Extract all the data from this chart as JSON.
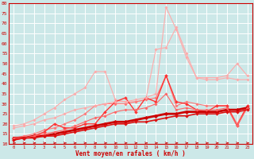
{
  "bg_color": "#cce8e8",
  "grid_color": "#b8d8d8",
  "xlabel": "Vent moyen/en rafales ( km/h )",
  "xlabel_color": "#cc0000",
  "tick_color": "#cc0000",
  "x_ticks": [
    0,
    1,
    2,
    3,
    4,
    5,
    6,
    7,
    8,
    9,
    10,
    11,
    12,
    13,
    14,
    15,
    16,
    17,
    18,
    19,
    20,
    21,
    22,
    23
  ],
  "ylim": [
    10,
    80
  ],
  "yticks": [
    10,
    15,
    20,
    25,
    30,
    35,
    40,
    45,
    50,
    55,
    60,
    65,
    70,
    75,
    80
  ],
  "lines": [
    {
      "color": "#ffaaaa",
      "lw": 0.8,
      "marker": "D",
      "markersize": 1.8,
      "y": [
        19,
        20,
        22,
        25,
        28,
        32,
        35,
        38,
        46,
        46,
        32,
        31,
        31,
        32,
        57,
        58,
        68,
        55,
        43,
        43,
        43,
        44,
        50,
        44
      ]
    },
    {
      "color": "#ff7777",
      "lw": 0.8,
      "marker": "D",
      "markersize": 1.8,
      "y": [
        13,
        14,
        15,
        17,
        18,
        20,
        22,
        25,
        29,
        30,
        30,
        30,
        31,
        32,
        33,
        44,
        29,
        31,
        30,
        29,
        29,
        29,
        20,
        29
      ]
    },
    {
      "color": "#ff3333",
      "lw": 1.0,
      "marker": "D",
      "markersize": 2.0,
      "y": [
        12,
        13,
        14,
        16,
        20,
        18,
        18,
        20,
        20,
        26,
        31,
        33,
        26,
        33,
        31,
        44,
        31,
        30,
        27,
        26,
        29,
        29,
        19,
        29
      ]
    },
    {
      "color": "#cc0000",
      "lw": 2.0,
      "marker": "D",
      "markersize": 2.5,
      "y": [
        13,
        13,
        14,
        14,
        15,
        16,
        17,
        18,
        19,
        20,
        21,
        21,
        22,
        23,
        24,
        25,
        25,
        26,
        26,
        26,
        26,
        27,
        27,
        28
      ]
    },
    {
      "color": "#ffaaaa",
      "lw": 0.8,
      "marker": "D",
      "markersize": 1.8,
      "y": [
        18,
        19,
        20,
        22,
        23,
        25,
        27,
        28,
        29,
        30,
        31,
        31,
        32,
        33,
        35,
        78,
        67,
        53,
        43,
        42,
        42,
        43,
        42,
        42
      ]
    },
    {
      "color": "#ff6666",
      "lw": 0.8,
      "marker": "D",
      "markersize": 1.8,
      "y": [
        13,
        13,
        14,
        15,
        16,
        17,
        19,
        21,
        23,
        24,
        26,
        27,
        27,
        28,
        30,
        35,
        27,
        28,
        27,
        27,
        27,
        28,
        19,
        28
      ]
    },
    {
      "color": "#dd1111",
      "lw": 1.2,
      "marker": "D",
      "markersize": 2.0,
      "y": [
        12,
        13,
        13,
        14,
        14,
        15,
        16,
        17,
        18,
        19,
        20,
        20,
        21,
        21,
        22,
        23,
        24,
        24,
        25,
        25,
        25,
        26,
        26,
        27
      ]
    }
  ],
  "arrow_color": "#cc0000"
}
